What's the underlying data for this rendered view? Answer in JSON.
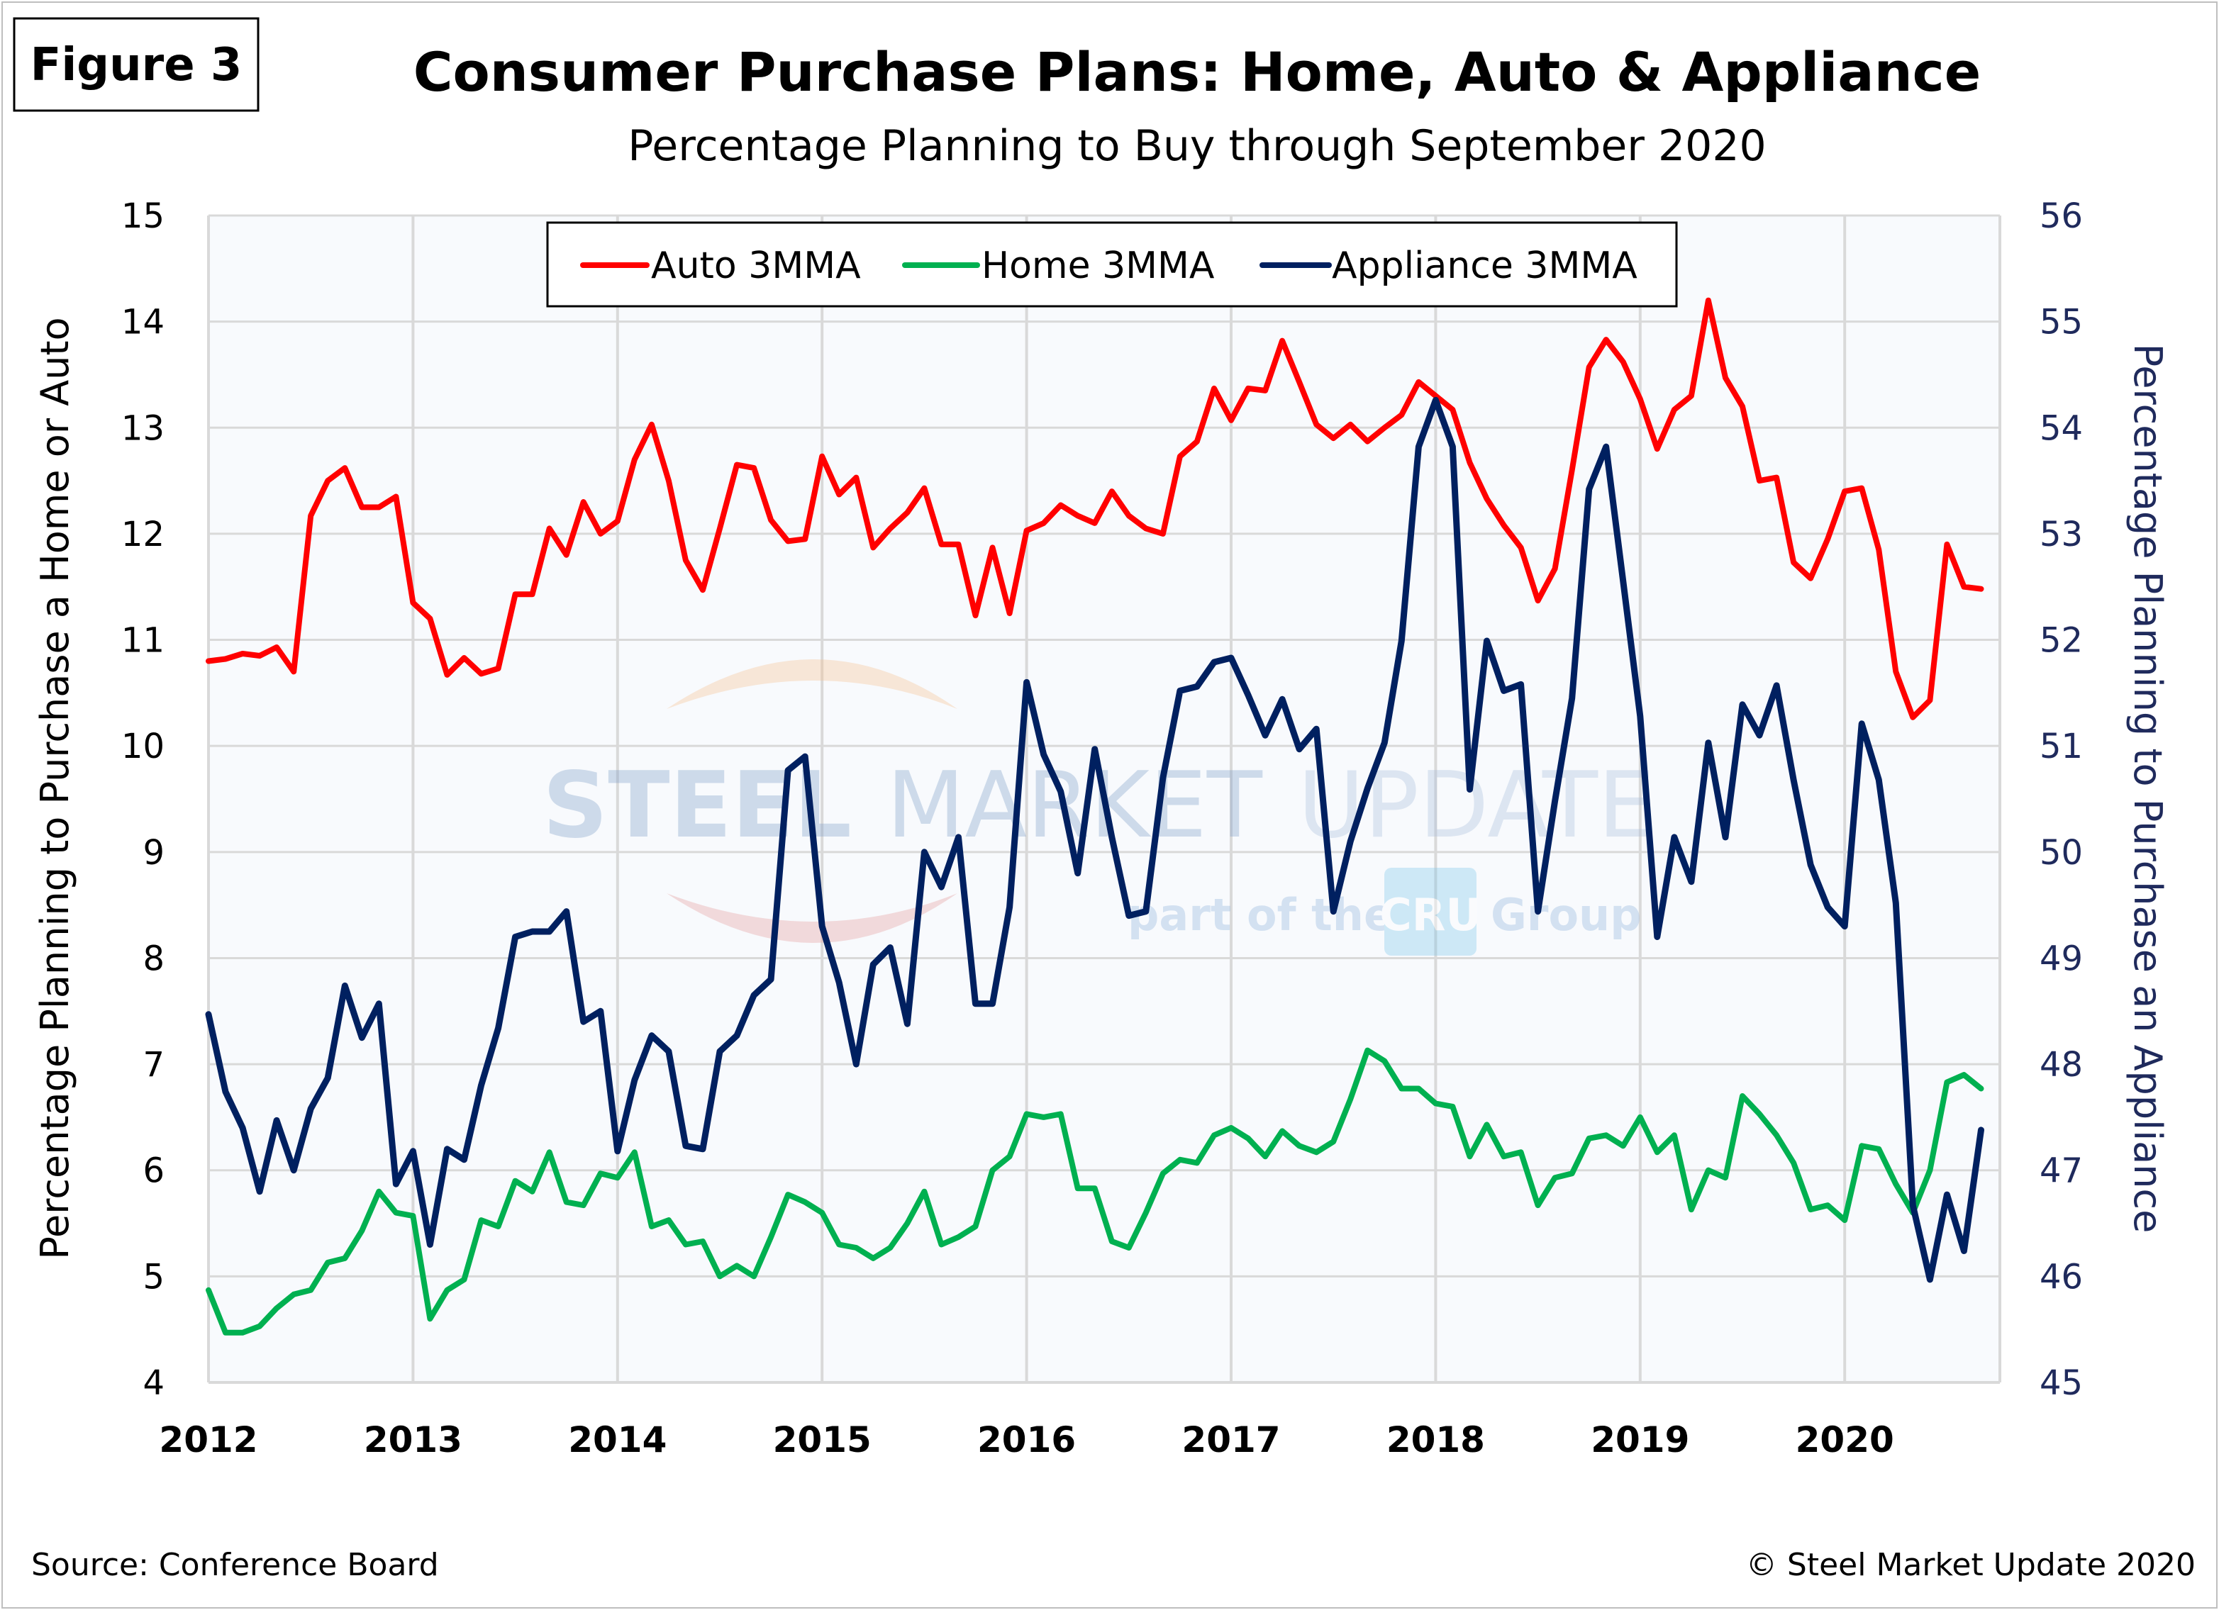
{
  "figure_label": "Figure 3",
  "source": "Source: Conference Board",
  "copyright": "© Steel Market Update 2020",
  "watermark": {
    "line1a": "STEEL",
    "line1b": "MARKET",
    "line1c": "UPDATE",
    "line2a": "part of the",
    "line2b": "CRU",
    "line2c": "Group"
  },
  "colors": {
    "auto": "#ff0000",
    "home": "#00b050",
    "appliance": "#002060",
    "grid": "#d9d9d9",
    "plot_bg": "#f8fafd"
  },
  "chart_data": {
    "type": "line",
    "title": "Consumer Purchase Plans: Home, Auto & Appliance",
    "subtitle": "Percentage Planning to Buy through September 2020",
    "ylabel": "Percentage Planning to Purchase a Home or Auto",
    "y2label": "Percentage Planning to Purchase an Appliance",
    "xlabel": "",
    "x_start": "2012-01",
    "x_end": "2020-09",
    "frequency": "monthly",
    "xticks": [
      "2012",
      "2013",
      "2014",
      "2015",
      "2016",
      "2017",
      "2018",
      "2019",
      "2020"
    ],
    "ylim": [
      4,
      15
    ],
    "yticks": [
      4,
      5,
      6,
      7,
      8,
      9,
      10,
      11,
      12,
      13,
      14,
      15
    ],
    "y2lim": [
      45,
      56
    ],
    "y2ticks": [
      45,
      46,
      47,
      48,
      49,
      50,
      51,
      52,
      53,
      54,
      55,
      56
    ],
    "grid": true,
    "legend_position": "top-center",
    "series": [
      {
        "name": "Auto 3MMA",
        "axis": "left",
        "color": "#ff0000",
        "values": [
          10.8,
          10.82,
          10.87,
          10.85,
          10.93,
          10.7,
          12.17,
          12.5,
          12.62,
          12.25,
          12.25,
          12.35,
          11.35,
          11.2,
          10.67,
          10.83,
          10.68,
          10.73,
          11.43,
          11.43,
          12.05,
          11.8,
          12.3,
          12.0,
          12.12,
          12.7,
          13.03,
          12.5,
          11.75,
          11.47,
          12.05,
          12.65,
          12.62,
          12.13,
          11.93,
          11.95,
          12.73,
          12.37,
          12.53,
          11.87,
          12.05,
          12.2,
          12.43,
          11.9,
          11.9,
          11.23,
          11.87,
          11.25,
          12.03,
          12.1,
          12.27,
          12.17,
          12.1,
          12.4,
          12.17,
          12.05,
          12.0,
          12.73,
          12.87,
          13.37,
          13.07,
          13.37,
          13.35,
          13.82,
          13.43,
          13.03,
          12.9,
          13.03,
          12.87,
          13.0,
          13.12,
          13.43,
          13.3,
          13.17,
          12.67,
          12.33,
          12.08,
          11.87,
          11.37,
          11.67,
          12.6,
          13.57,
          13.83,
          13.62,
          13.27,
          12.8,
          13.17,
          13.3,
          14.2,
          13.47,
          13.2,
          12.5,
          12.53,
          11.73,
          11.58,
          11.95,
          12.4,
          12.43,
          11.85,
          10.7,
          10.27,
          10.43,
          11.9,
          11.5,
          11.48
        ]
      },
      {
        "name": "Home 3MMA",
        "axis": "left",
        "color": "#00b050",
        "values": [
          4.87,
          4.47,
          4.47,
          4.53,
          4.7,
          4.83,
          4.87,
          5.13,
          5.17,
          5.43,
          5.8,
          5.6,
          5.57,
          4.6,
          4.87,
          4.97,
          5.53,
          5.47,
          5.9,
          5.8,
          6.17,
          5.7,
          5.67,
          5.97,
          5.93,
          6.17,
          5.47,
          5.53,
          5.3,
          5.33,
          5.0,
          5.1,
          5.0,
          5.37,
          5.77,
          5.7,
          5.6,
          5.3,
          5.27,
          5.17,
          5.27,
          5.5,
          5.8,
          5.3,
          5.37,
          5.47,
          6.0,
          6.13,
          6.53,
          6.5,
          6.53,
          5.83,
          5.83,
          5.33,
          5.27,
          5.6,
          5.97,
          6.1,
          6.07,
          6.33,
          6.4,
          6.3,
          6.13,
          6.37,
          6.23,
          6.17,
          6.27,
          6.67,
          7.13,
          7.03,
          6.77,
          6.77,
          6.63,
          6.6,
          6.13,
          6.43,
          6.13,
          6.17,
          5.67,
          5.93,
          5.97,
          6.3,
          6.33,
          6.23,
          6.5,
          6.17,
          6.33,
          5.63,
          6.0,
          5.93,
          6.7,
          6.53,
          6.33,
          6.07,
          5.63,
          5.67,
          5.53,
          6.23,
          6.2,
          5.87,
          5.6,
          6.0,
          6.83,
          6.9,
          6.77
        ]
      },
      {
        "name": "Appliance 3MMA",
        "axis": "right",
        "color": "#002060",
        "values": [
          48.47,
          47.74,
          47.4,
          46.8,
          47.47,
          47.0,
          47.58,
          47.87,
          48.74,
          48.25,
          48.57,
          46.87,
          47.18,
          46.3,
          47.2,
          47.1,
          47.8,
          48.34,
          49.2,
          49.25,
          49.25,
          49.44,
          48.4,
          48.5,
          47.18,
          47.85,
          48.27,
          48.12,
          47.23,
          47.2,
          48.12,
          48.27,
          48.65,
          48.8,
          50.77,
          50.9,
          49.3,
          48.77,
          48.0,
          48.94,
          49.1,
          48.38,
          50.0,
          49.67,
          50.14,
          48.57,
          48.57,
          49.48,
          51.6,
          50.92,
          50.57,
          49.8,
          50.97,
          50.14,
          49.4,
          49.44,
          50.7,
          51.52,
          51.56,
          51.79,
          51.83,
          51.48,
          51.1,
          51.44,
          50.97,
          51.16,
          49.44,
          50.1,
          50.6,
          51.03,
          51.99,
          53.82,
          54.26,
          53.82,
          50.59,
          51.99,
          51.52,
          51.58,
          49.44,
          50.48,
          51.45,
          53.42,
          53.82,
          52.55,
          51.28,
          49.2,
          50.14,
          49.72,
          51.03,
          50.14,
          51.39,
          51.1,
          51.57,
          50.68,
          49.88,
          49.48,
          49.3,
          51.21,
          50.68,
          49.52,
          46.67,
          45.97,
          46.77,
          46.24,
          47.38
        ]
      }
    ]
  }
}
